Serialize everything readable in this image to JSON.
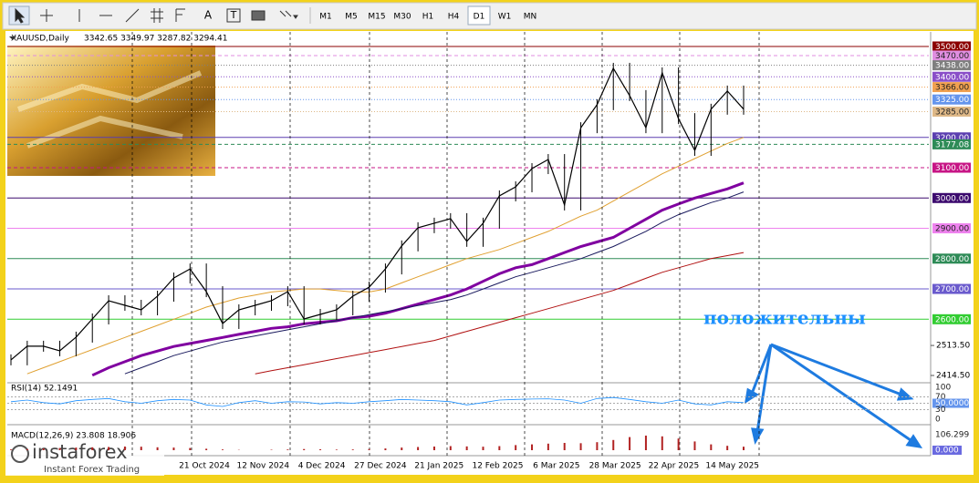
{
  "toolbar": {
    "tools": [
      "A",
      "T"
    ],
    "timeframes": [
      "M1",
      "M5",
      "M15",
      "M30",
      "H1",
      "H4",
      "D1",
      "W1",
      "MN"
    ],
    "active": "D1"
  },
  "chart": {
    "symbol": "XAUUSD,Daily",
    "ohlc": "3342.65 3349.97 3287.82 3294.41",
    "ylim": [
      2414.5,
      3500
    ],
    "levels": [
      {
        "value": 3500,
        "label": "3500.00",
        "color": "#8b0000",
        "style": "solid"
      },
      {
        "value": 3470,
        "label": "3470.00",
        "color": "#e08ee0",
        "style": "dashed"
      },
      {
        "value": 3438,
        "label": "3438.00",
        "color": "#7f7f7f",
        "style": "dotted"
      },
      {
        "value": 3400,
        "label": "3400.00",
        "color": "#8a4fc8",
        "style": "dotted"
      },
      {
        "value": 3366,
        "label": "3366.00",
        "color": "#f0a050",
        "style": "dotted"
      },
      {
        "value": 3325,
        "label": "3325.00",
        "color": "#6495ed",
        "style": "dotted"
      },
      {
        "value": 3285,
        "label": "3285.00",
        "color": "#deb887",
        "style": "dotted"
      },
      {
        "value": 3200,
        "label": "3200.00",
        "color": "#5b3fb0",
        "style": "solid"
      },
      {
        "value": 3177.08,
        "label": "3177.08",
        "color": "#2e8b57",
        "style": "dashed"
      },
      {
        "value": 3100,
        "label": "3100.00",
        "color": "#c71585",
        "style": "dashed"
      },
      {
        "value": 3000,
        "label": "3000.00",
        "color": "#3c0a6e",
        "style": "solid"
      },
      {
        "value": 2900,
        "label": "2900.00",
        "color": "#ee82ee",
        "style": "solid"
      },
      {
        "value": 2800,
        "label": "2800.00",
        "color": "#2e8b57",
        "style": "solid"
      },
      {
        "value": 2700,
        "label": "2700.00",
        "color": "#6a5acd",
        "style": "solid"
      },
      {
        "value": 2600,
        "label": "2600.00",
        "color": "#32cd32",
        "style": "solid"
      }
    ],
    "scale_labels": [
      {
        "value": 2513.5,
        "label": "2513.50"
      },
      {
        "value": 2414.5,
        "label": "2414.50"
      }
    ],
    "dates": [
      "21 Oct 2024",
      "12 Nov 2024",
      "4 Dec 2024",
      "27 Dec 2024",
      "21 Jan 2025",
      "12 Feb 2025",
      "6 Mar 2025",
      "28 Mar 2025",
      "22 Apr 2025",
      "14 May 2025"
    ],
    "closes": [
      2466,
      2511,
      2511,
      2496,
      2541,
      2601,
      2661,
      2646,
      2631,
      2676,
      2736,
      2766,
      2691,
      2586,
      2631,
      2646,
      2661,
      2691,
      2601,
      2616,
      2631,
      2676,
      2706,
      2766,
      2842,
      2902,
      2917,
      2932,
      2857,
      2917,
      3007,
      3037,
      3097,
      3127,
      2977,
      3232,
      3308,
      3428,
      3338,
      3232,
      3413,
      3262,
      3157,
      3293,
      3353,
      3293
    ],
    "moving_averages": [
      {
        "color": "#e0a030",
        "width": 1,
        "values": [
          null,
          2420,
          2440,
          2460,
          2480,
          2500,
          2520,
          2540,
          2560,
          2580,
          2600,
          2620,
          2640,
          2655,
          2670,
          2680,
          2690,
          2695,
          2700,
          2700,
          2695,
          2690,
          2690,
          2700,
          2720,
          2740,
          2760,
          2780,
          2800,
          2815,
          2830,
          2850,
          2870,
          2890,
          2915,
          2940,
          2960,
          2990,
          3020,
          3050,
          3080,
          3105,
          3130,
          3155,
          3180,
          3200
        ]
      },
      {
        "color": "#8000a0",
        "width": 3,
        "values": [
          null,
          null,
          null,
          null,
          null,
          2415,
          2440,
          2460,
          2480,
          2495,
          2510,
          2520,
          2530,
          2540,
          2550,
          2560,
          2570,
          2575,
          2585,
          2590,
          2595,
          2605,
          2610,
          2620,
          2635,
          2650,
          2665,
          2680,
          2700,
          2725,
          2750,
          2770,
          2780,
          2800,
          2820,
          2840,
          2855,
          2870,
          2900,
          2930,
          2960,
          2980,
          3000,
          3015,
          3030,
          3050
        ]
      },
      {
        "color": "#1a1a5e",
        "width": 1,
        "values": [
          null,
          null,
          null,
          null,
          null,
          null,
          null,
          2420,
          2440,
          2460,
          2480,
          2495,
          2510,
          2525,
          2535,
          2545,
          2555,
          2565,
          2575,
          2585,
          2595,
          2605,
          2615,
          2625,
          2635,
          2645,
          2655,
          2665,
          2680,
          2700,
          2720,
          2740,
          2755,
          2770,
          2785,
          2800,
          2820,
          2840,
          2865,
          2890,
          2920,
          2945,
          2965,
          2985,
          3000,
          3020
        ]
      },
      {
        "color": "#b01010",
        "width": 1,
        "values": [
          null,
          null,
          null,
          null,
          null,
          null,
          null,
          null,
          null,
          null,
          null,
          null,
          null,
          null,
          null,
          2420,
          2430,
          2440,
          2450,
          2460,
          2470,
          2480,
          2490,
          2500,
          2510,
          2520,
          2530,
          2545,
          2560,
          2575,
          2590,
          2605,
          2620,
          2635,
          2650,
          2665,
          2680,
          2695,
          2715,
          2735,
          2755,
          2770,
          2785,
          2800,
          2810,
          2820
        ]
      }
    ],
    "annotation": "положительны"
  },
  "rsi": {
    "label": "RSI(14) 52.1491",
    "ylim": [
      0,
      100
    ],
    "yticks": [
      100,
      70,
      {
        "value": 50,
        "label": "50.0000"
      },
      30,
      0
    ],
    "values": [
      55,
      60,
      52,
      48,
      58,
      62,
      65,
      55,
      50,
      58,
      62,
      60,
      45,
      40,
      52,
      58,
      50,
      55,
      54,
      48,
      52,
      50,
      55,
      58,
      62,
      60,
      58,
      55,
      45,
      52,
      60,
      62,
      63,
      64,
      60,
      50,
      65,
      68,
      62,
      55,
      50,
      60,
      48,
      45,
      55,
      52
    ]
  },
  "macd": {
    "label": "MACD(12,26,9) 23.808 18.906",
    "ylim": [
      0,
      106.299
    ],
    "yticks": [
      {
        "value": 106.299,
        "label": "106.299"
      },
      {
        "value": 0,
        "label": "0.000"
      }
    ],
    "values": [
      5,
      8,
      12,
      15,
      18,
      20,
      22,
      25,
      24,
      20,
      18,
      15,
      10,
      5,
      2,
      0,
      3,
      5,
      8,
      6,
      4,
      5,
      8,
      12,
      18,
      22,
      25,
      28,
      26,
      24,
      28,
      35,
      40,
      45,
      50,
      48,
      55,
      70,
      90,
      100,
      95,
      80,
      60,
      40,
      30,
      24
    ]
  },
  "logo": {
    "name": "instaforex",
    "tagline": "Instant Forex Trading"
  }
}
